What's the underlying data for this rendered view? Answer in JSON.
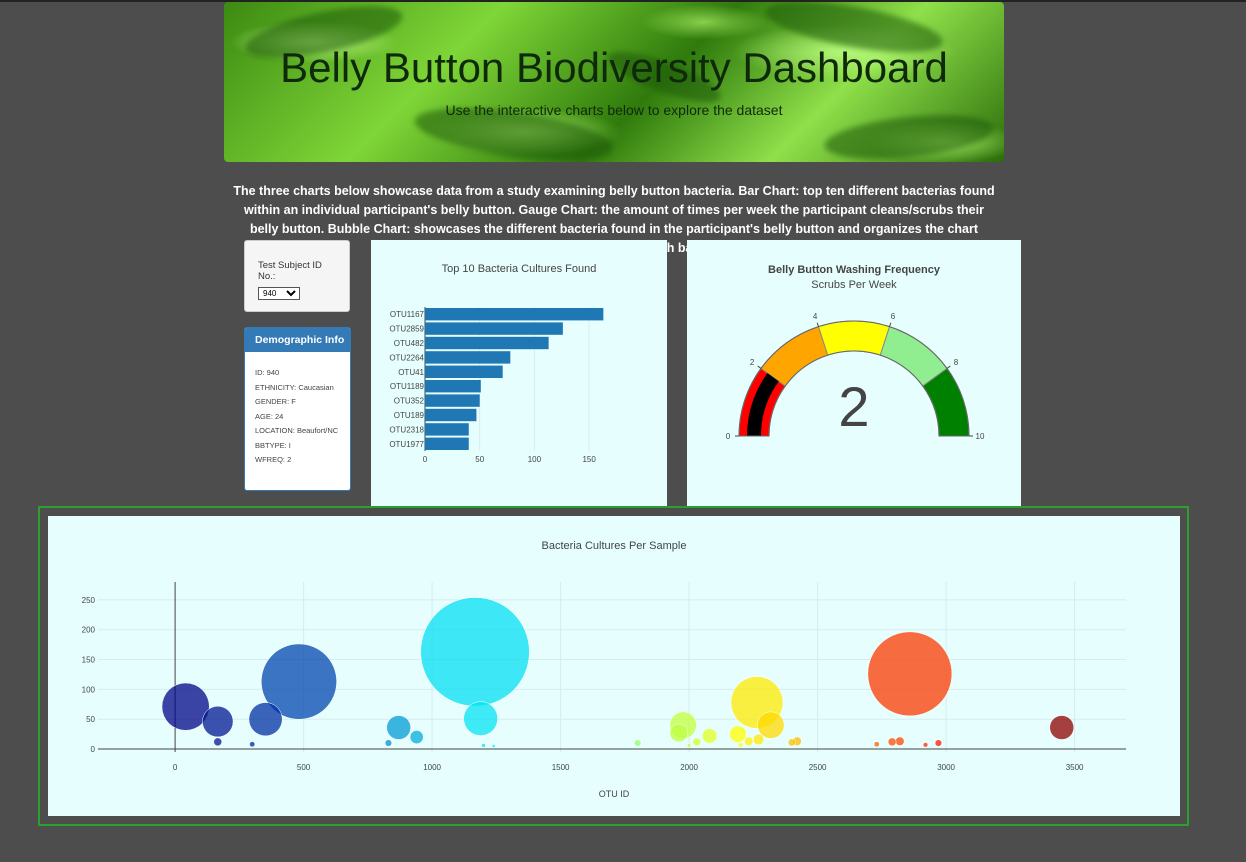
{
  "header": {
    "title": "Belly Button Biodiversity Dashboard",
    "subtitle": "Use the interactive charts below to explore the dataset"
  },
  "intro": "The three charts below showcase data from a study examining belly button bacteria. Bar Chart: top ten different bacterias found within an individual participant's belly button. Gauge Chart: the amount of times per week the participant cleans/scrubs their belly button. Bubble Chart: showcases the different bacteria found in the participant's belly button and organizes the chart based on sample size of each bacteria.",
  "selector": {
    "label": "Test Subject ID No.:",
    "value": "940"
  },
  "demographics": {
    "heading": "Demographic Info",
    "items": [
      "ID: 940",
      "ETHNICITY: Caucasian",
      "GENDER: F",
      "AGE: 24",
      "LOCATION: Beaufort/NC",
      "BBTYPE: I",
      "WFREQ: 2"
    ]
  },
  "chart_data": [
    {
      "type": "bar",
      "orientation": "horizontal",
      "title": "Top 10 Bacteria Cultures Found",
      "categories": [
        "OTU1167",
        "OTU2859",
        "OTU482",
        "OTU2264",
        "OTU41",
        "OTU1189",
        "OTU352",
        "OTU189",
        "OTU2318",
        "OTU1977"
      ],
      "values": [
        163,
        126,
        113,
        78,
        71,
        51,
        50,
        47,
        40,
        40
      ],
      "xlim": [
        0,
        170
      ],
      "xticks": [
        0,
        50,
        100,
        150
      ],
      "color": "#1f77b4"
    },
    {
      "type": "gauge",
      "title": "Belly Button Washing Frequency",
      "subtitle": "Scrubs Per Week",
      "value": 2,
      "range": [
        0,
        10
      ],
      "ticks": [
        0,
        2,
        4,
        6,
        8,
        10
      ],
      "steps": [
        {
          "range": [
            0,
            2
          ],
          "color": "#ff0000"
        },
        {
          "range": [
            2,
            4
          ],
          "color": "#ffa500"
        },
        {
          "range": [
            4,
            6
          ],
          "color": "#ffff00"
        },
        {
          "range": [
            6,
            8
          ],
          "color": "#90ee90"
        },
        {
          "range": [
            8,
            10
          ],
          "color": "#008000"
        }
      ],
      "bar_color": "#000000"
    },
    {
      "type": "scatter",
      "subtype": "bubble",
      "title": "Bacteria Cultures Per Sample",
      "xlabel": "OTU ID",
      "ylabel": "",
      "xlim": [
        -300,
        3700
      ],
      "ylim": [
        -5,
        280
      ],
      "xticks": [
        0,
        500,
        1000,
        1500,
        2000,
        2500,
        3000,
        3500
      ],
      "yticks": [
        0,
        50,
        100,
        150,
        200,
        250
      ],
      "colorscale": "Jet-like",
      "points": [
        {
          "x": 41,
          "y": 71
        },
        {
          "x": 166,
          "y": 46
        },
        {
          "x": 352,
          "y": 50
        },
        {
          "x": 482,
          "y": 113
        },
        {
          "x": 1167,
          "y": 163
        },
        {
          "x": 1189,
          "y": 51
        },
        {
          "x": 870,
          "y": 36
        },
        {
          "x": 2264,
          "y": 78
        },
        {
          "x": 2859,
          "y": 126
        },
        {
          "x": 3450,
          "y": 36
        },
        {
          "x": 2318,
          "y": 40
        },
        {
          "x": 1977,
          "y": 40
        },
        {
          "x": 1960,
          "y": 27
        },
        {
          "x": 2080,
          "y": 22
        },
        {
          "x": 2190,
          "y": 25
        },
        {
          "x": 2270,
          "y": 16
        },
        {
          "x": 940,
          "y": 20
        },
        {
          "x": 166,
          "y": 12
        },
        {
          "x": 830,
          "y": 10
        },
        {
          "x": 2030,
          "y": 12
        },
        {
          "x": 2232,
          "y": 13
        },
        {
          "x": 2420,
          "y": 13
        },
        {
          "x": 2400,
          "y": 11
        },
        {
          "x": 2820,
          "y": 13
        },
        {
          "x": 2790,
          "y": 12
        },
        {
          "x": 2970,
          "y": 10
        },
        {
          "x": 2730,
          "y": 8
        },
        {
          "x": 1800,
          "y": 10
        },
        {
          "x": 2920,
          "y": 7
        },
        {
          "x": 300,
          "y": 8
        },
        {
          "x": 1200,
          "y": 6
        },
        {
          "x": 1240,
          "y": 5
        },
        {
          "x": 2200,
          "y": 7
        },
        {
          "x": 2000,
          "y": 6
        }
      ]
    }
  ]
}
